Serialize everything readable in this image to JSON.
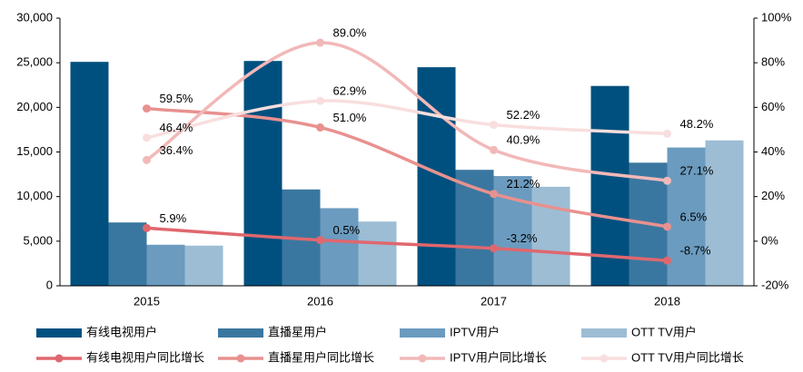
{
  "chart_data": {
    "type": "bar_line",
    "categories": [
      "2015",
      "2016",
      "2017",
      "2018"
    ],
    "series": [
      {
        "name": "有线电视用户",
        "type": "bar",
        "color": "#00507f",
        "values": [
          25100,
          25200,
          24500,
          22400
        ]
      },
      {
        "name": "直播星用户",
        "type": "bar",
        "color": "#3a77a0",
        "values": [
          7100,
          10800,
          13000,
          13800
        ]
      },
      {
        "name": "IPTV用户",
        "type": "bar",
        "color": "#6b9bbf",
        "values": [
          4600,
          8700,
          12300,
          15500
        ]
      },
      {
        "name": "OTT TV用户",
        "type": "bar",
        "color": "#9cbdd4",
        "values": [
          4500,
          7200,
          11100,
          16300
        ]
      },
      {
        "name": "有线电视用户同比增长",
        "type": "line",
        "axis": "y2",
        "color": "#e0676e",
        "values": [
          5.9,
          0.5,
          -3.2,
          -8.7
        ],
        "value_labels": [
          "5.9%",
          "0.5%",
          "-3.2%",
          "-8.7%"
        ]
      },
      {
        "name": "直播星用户同比增长",
        "type": "line",
        "axis": "y2",
        "color": "#e8918f",
        "values": [
          59.5,
          51.0,
          21.2,
          6.5
        ],
        "value_labels": [
          "59.5%",
          "51.0%",
          "21.2%",
          "6.5%"
        ]
      },
      {
        "name": "IPTV用户同比增长",
        "type": "line",
        "axis": "y2",
        "color": "#f2b8b8",
        "values": [
          36.4,
          89.0,
          40.9,
          27.1
        ],
        "value_labels": [
          "36.4%",
          "89.0%",
          "40.9%",
          "27.1%"
        ]
      },
      {
        "name": "OTT TV用户同比增长",
        "type": "line",
        "axis": "y2",
        "color": "#f8dede",
        "values": [
          46.4,
          62.9,
          52.2,
          48.2
        ],
        "value_labels": [
          "46.4%",
          "62.9%",
          "52.2%",
          "48.2%"
        ]
      }
    ],
    "ylim": [
      0,
      30000
    ],
    "yticks": [
      0,
      {
        "value": 5000,
        "label": "5,000"
      },
      {
        "value": 10000,
        "label": "10,000"
      },
      {
        "value": 15000,
        "label": "15,000"
      },
      {
        "value": 20000,
        "label": "20,000"
      },
      {
        "value": 25000,
        "label": "25,000"
      },
      {
        "value": 30000,
        "label": "30,000"
      }
    ],
    "y2lim": [
      -20,
      100
    ],
    "y2ticks": [
      {
        "value": -20,
        "label": "-20%"
      },
      {
        "value": 0,
        "label": "0%"
      },
      {
        "value": 20,
        "label": "20%"
      },
      {
        "value": 40,
        "label": "40%"
      },
      {
        "value": 60,
        "label": "60%"
      },
      {
        "value": 80,
        "label": "80%"
      },
      {
        "value": 100,
        "label": "100%"
      }
    ],
    "legend": "bottom"
  }
}
